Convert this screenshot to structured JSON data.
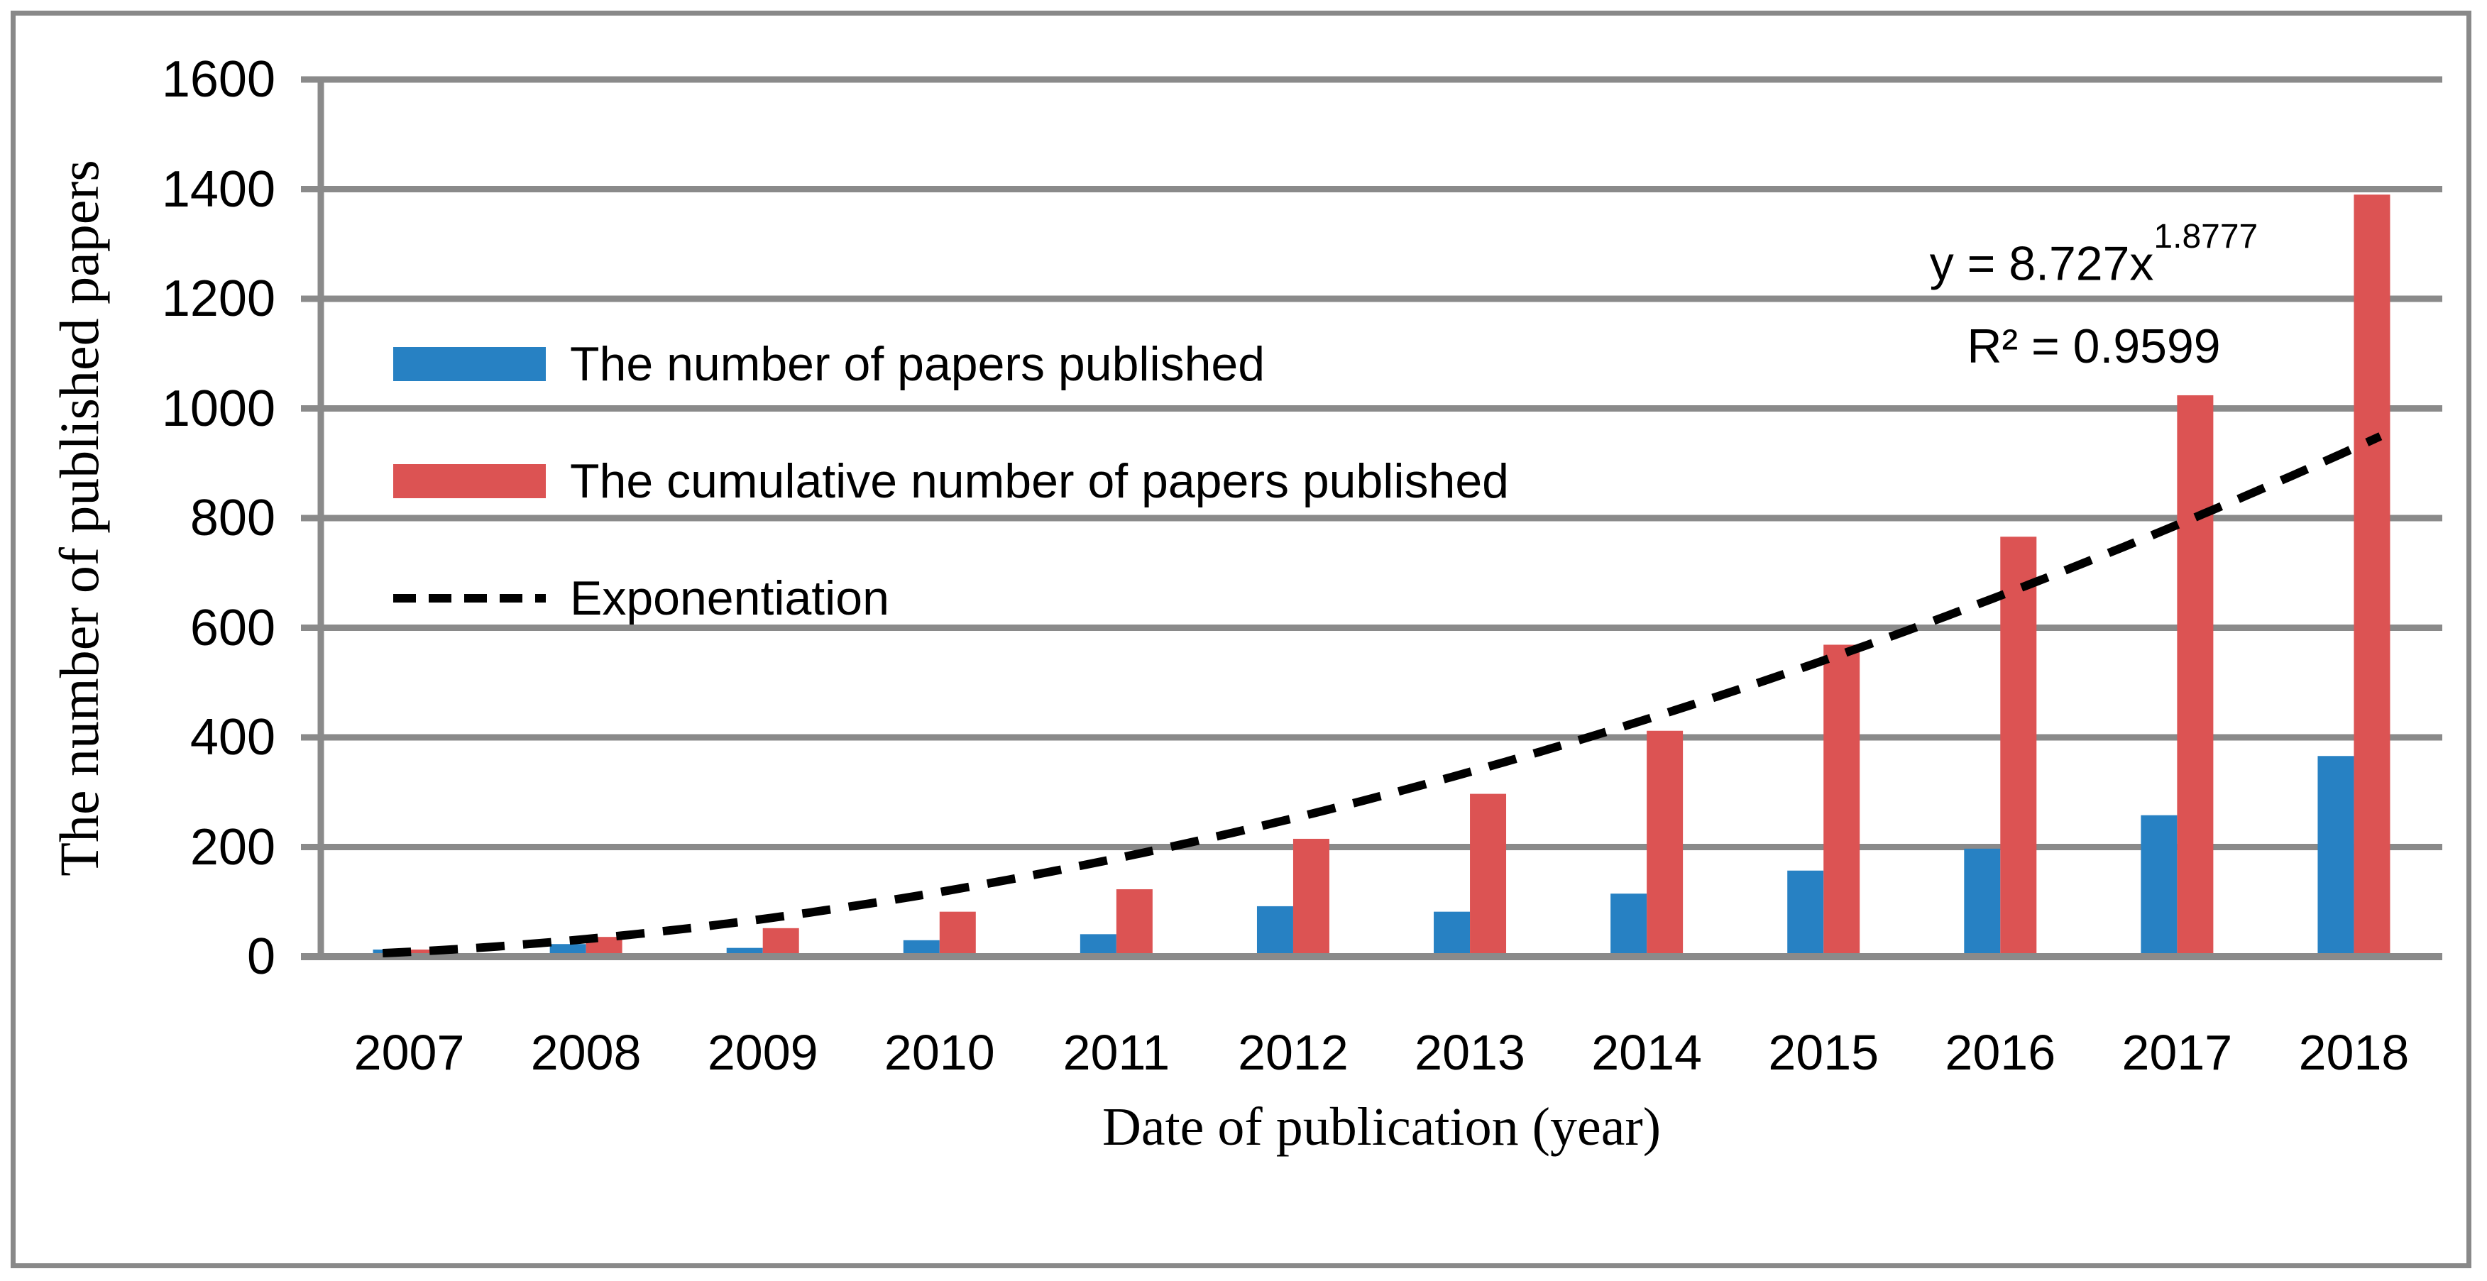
{
  "figure": {
    "y_axis_title": "The number of published papers",
    "x_axis_title": "Date of publication (year)",
    "trendline_equation_base": "y = 8.727x",
    "trendline_equation_exponent": "1.8777",
    "trendline_r_squared": "R² = 0.9599"
  },
  "legend": {
    "position": "inside-top-left",
    "items": [
      {
        "label": "The number of papers published",
        "type": "bar",
        "color": "#2781C3"
      },
      {
        "label": "The cumulative number of papers published",
        "type": "bar",
        "color": "#DC5353"
      },
      {
        "label": "Exponentiation",
        "type": "dashed-line",
        "color": "#000000"
      }
    ]
  },
  "chart_data": {
    "type": "bar",
    "categories": [
      "2007",
      "2008",
      "2009",
      "2010",
      "2011",
      "2012",
      "2013",
      "2014",
      "2015",
      "2016",
      "2017",
      "2018"
    ],
    "series": [
      {
        "name": "The number of papers published",
        "color": "#2781C3",
        "values": [
          13,
          23,
          16,
          30,
          41,
          92,
          82,
          115,
          157,
          197,
          258,
          366
        ]
      },
      {
        "name": "The cumulative number of papers published",
        "color": "#DC5353",
        "values": [
          13,
          36,
          52,
          82,
          123,
          215,
          297,
          412,
          569,
          766,
          1024,
          1390
        ]
      }
    ],
    "trendline": {
      "name": "Exponentiation",
      "type": "power",
      "equation": "y = 8.727x^1.8777",
      "coefficient_a": 8.727,
      "exponent_b": 1.8777,
      "r_squared": 0.9599,
      "color": "#000000",
      "style": "dashed"
    },
    "xlabel": "Date of publication (year)",
    "ylabel": "The number of published papers",
    "ylim": [
      0,
      1600
    ],
    "yticks": [
      0,
      200,
      400,
      600,
      800,
      1000,
      1200,
      1400,
      1600
    ],
    "grid": true,
    "grid_color": "#8A8A8A",
    "legend_position": "inside-top-left"
  }
}
